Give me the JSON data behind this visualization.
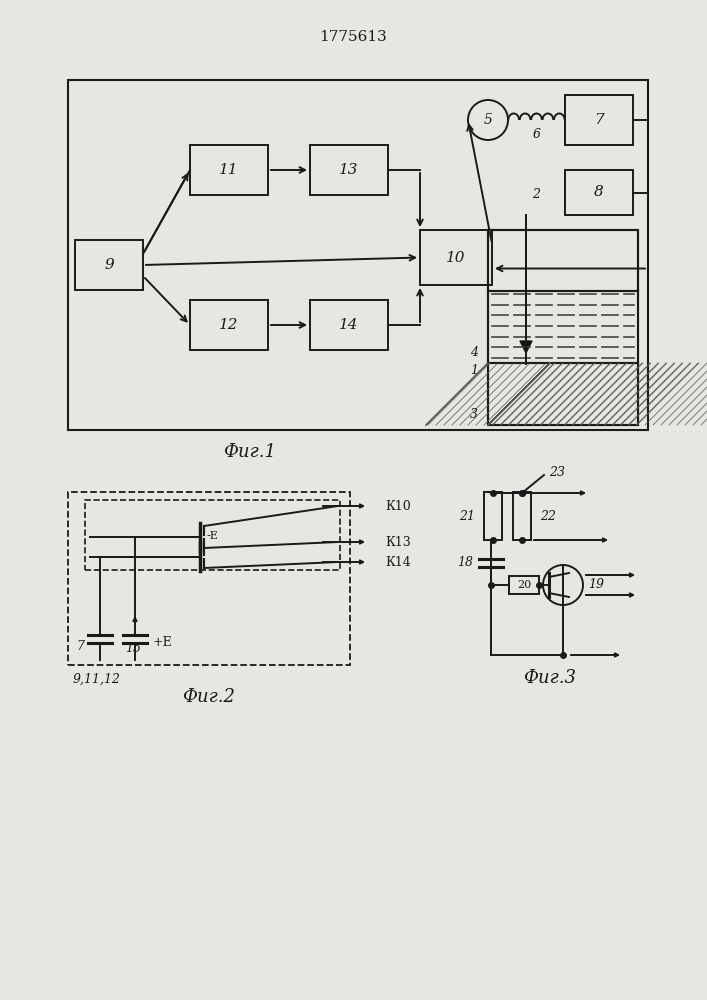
{
  "title": "1775613",
  "fig1_caption": "Фиг.1",
  "fig2_caption": "Фиг.2",
  "fig3_caption": "Фиг.3",
  "fig2_sublabel": "9,11,12",
  "bg_color": "#e8e6e1",
  "line_color": "#1a1a1a"
}
